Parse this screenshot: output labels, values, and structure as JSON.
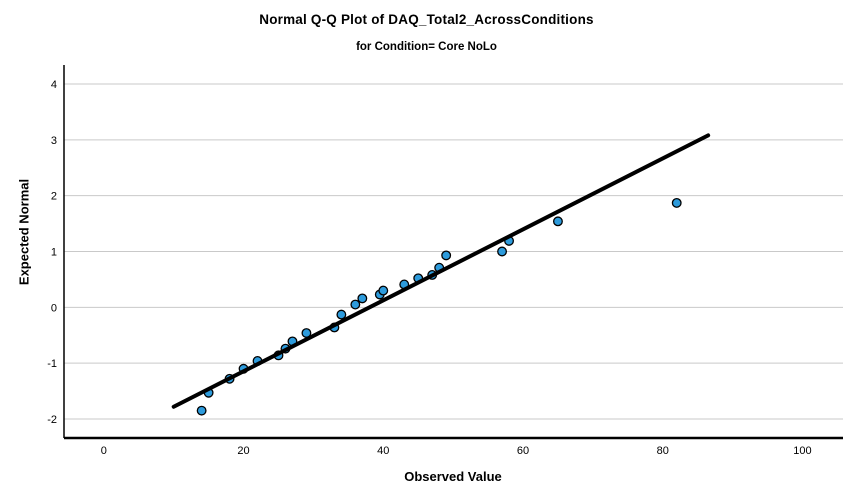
{
  "chart": {
    "title": "Normal Q-Q Plot of DAQ_Total2_AcrossConditions",
    "subtitle": "for Condition= Core NoLo",
    "xlabel": "Observed Value",
    "ylabel": "Expected Normal"
  },
  "chart_data": {
    "type": "scatter",
    "title": "Normal Q-Q Plot of DAQ_Total2_AcrossConditions",
    "subtitle": "for Condition= Core NoLo",
    "xlabel": "Observed Value",
    "ylabel": "Expected Normal",
    "x_ticks": [
      0,
      20,
      40,
      60,
      80,
      100
    ],
    "y_ticks": [
      -2,
      -1,
      0,
      1,
      2,
      3,
      4
    ],
    "xlim": [
      -5.7,
      105.8
    ],
    "ylim": [
      -2.34,
      4.34
    ],
    "grid": "horizontal-only",
    "legend": "none",
    "points": [
      [
        14,
        -1.85
      ],
      [
        15,
        -1.53
      ],
      [
        18,
        -1.28
      ],
      [
        20,
        -1.1
      ],
      [
        22,
        -0.96
      ],
      [
        25,
        -0.86
      ],
      [
        26,
        -0.74
      ],
      [
        27,
        -0.61
      ],
      [
        29,
        -0.46
      ],
      [
        33,
        -0.36
      ],
      [
        34,
        -0.13
      ],
      [
        36,
        0.05
      ],
      [
        37,
        0.16
      ],
      [
        39.5,
        0.23
      ],
      [
        40,
        0.3
      ],
      [
        43,
        0.41
      ],
      [
        45,
        0.52
      ],
      [
        47,
        0.58
      ],
      [
        48,
        0.71
      ],
      [
        49,
        0.93
      ],
      [
        57,
        1.0
      ],
      [
        58,
        1.19
      ],
      [
        65,
        1.54
      ],
      [
        82,
        1.87
      ]
    ],
    "reference_line": {
      "x1": 10,
      "y1": -1.78,
      "x2": 86.5,
      "y2": 3.08
    },
    "colors": {
      "point_fill": "#2D9BDC",
      "point_stroke": "#000000",
      "reference_line": "#000000",
      "grid": "#C9C9C9",
      "axis": "#000000",
      "background": "#FFFFFF"
    }
  }
}
